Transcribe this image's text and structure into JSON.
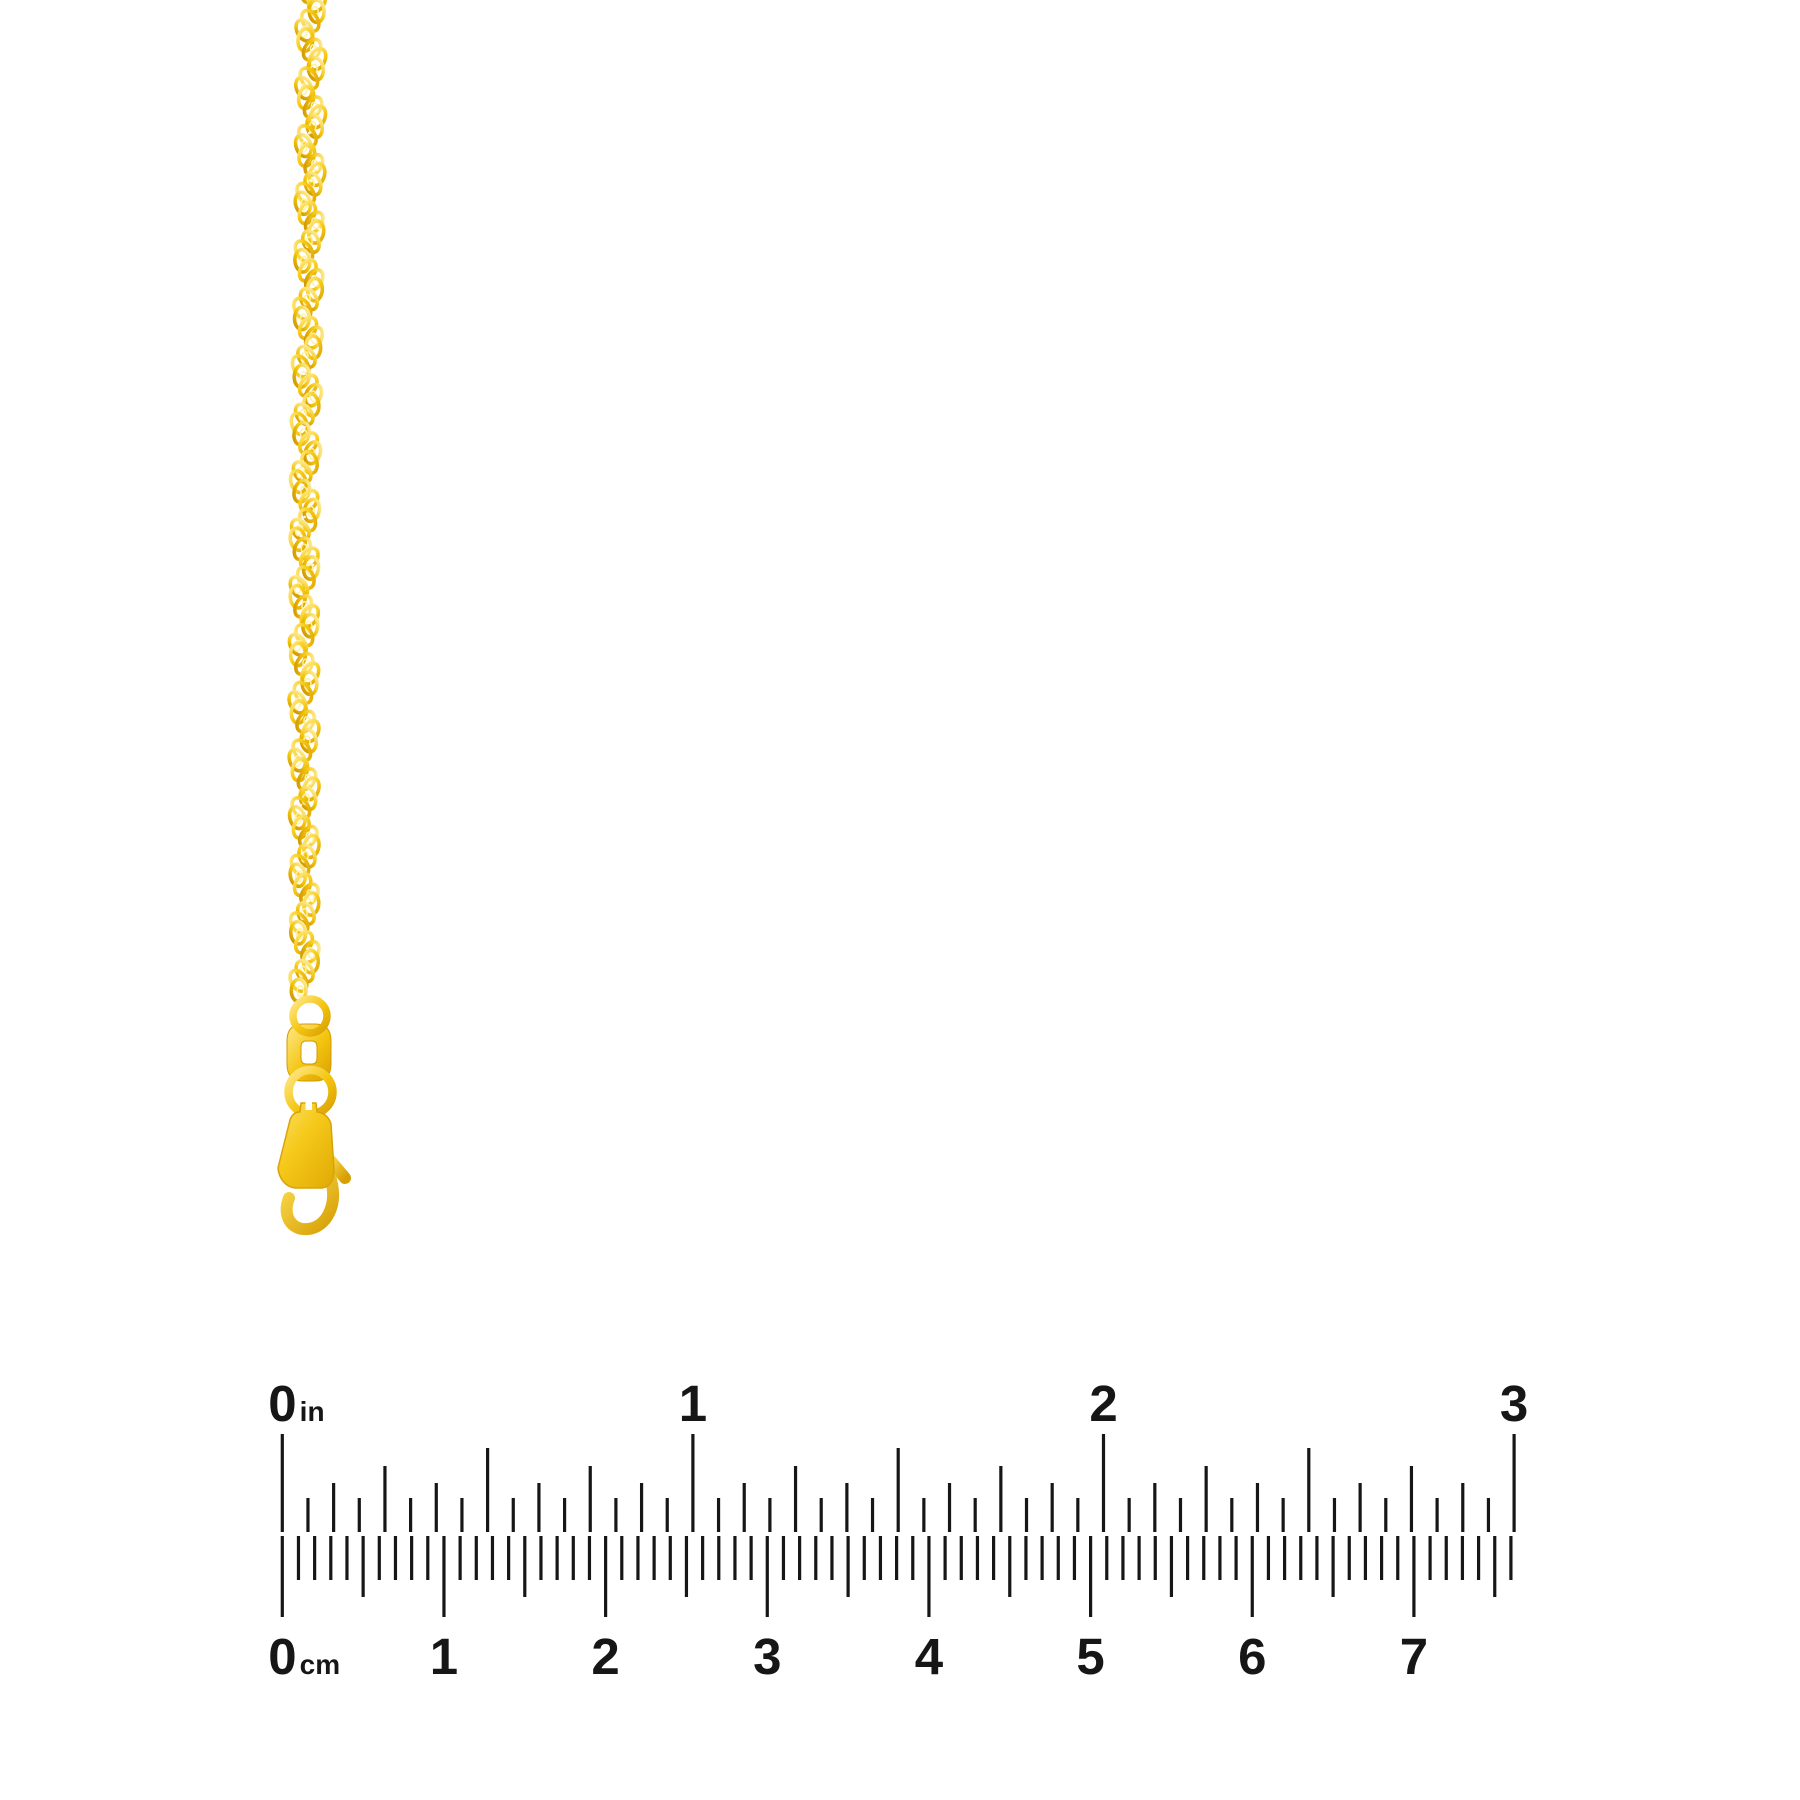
{
  "image": {
    "background": "#ffffff",
    "subject": "gold twisted singapore chain with lobster clasp shown above an inch and centimeter ruler"
  },
  "colors": {
    "gold_highlight": "#FFEE9C",
    "gold_mid": "#F5C71A",
    "gold_deep": "#D89F05",
    "gold_shadow": "#B8860B",
    "ink": "#161616",
    "background": "#FFFFFF"
  },
  "ruler": {
    "top_scale": {
      "unit": "in",
      "labels": [
        "0",
        "1",
        "2",
        "3"
      ]
    },
    "bottom_scale": {
      "unit": "cm",
      "labels": [
        "0",
        "1",
        "2",
        "3",
        "4",
        "5",
        "6",
        "7"
      ]
    }
  }
}
